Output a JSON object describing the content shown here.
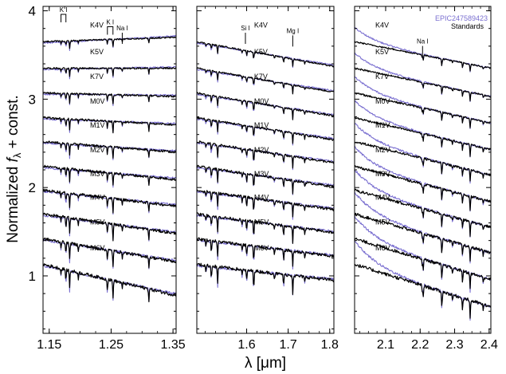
{
  "chart_data": {
    "type": "line",
    "ylabel_prefix": "Normalized ",
    "ylabel_var": "f",
    "ylabel_sub": "λ",
    "ylabel_suffix": " + const.",
    "xlabel": "λ [μm]",
    "ylim": [
      0.35,
      4.05
    ],
    "yticks": [
      1,
      2,
      3,
      4
    ],
    "legend": {
      "position": "top-right",
      "entries": [
        {
          "label": "EPIC247589423",
          "color": "#7a6fd0"
        },
        {
          "label": "Standards",
          "color": "#000000"
        }
      ]
    },
    "colors": {
      "target": "#7a6fd0",
      "standard": "#000000"
    },
    "spectral_types": [
      "K4V",
      "K5V",
      "K7V",
      "M0V",
      "M1V",
      "M2V",
      "M3V",
      "M4V",
      "M5V",
      "M6V"
    ],
    "offsets": [
      3.55,
      3.25,
      2.97,
      2.69,
      2.42,
      2.14,
      1.87,
      1.6,
      1.32,
      1.03
    ],
    "panels": [
      {
        "name": "J",
        "xlim": [
          1.14,
          1.355
        ],
        "xticks": [
          1.15,
          1.25,
          1.35
        ],
        "xticklabels": [
          "1.15",
          "1.25",
          "1.35"
        ],
        "slopes": [
          0.05,
          0.0,
          -0.04,
          -0.08,
          -0.12,
          -0.15,
          -0.18,
          -0.22,
          -0.26,
          -0.35
        ],
        "absorption_lines": [
          1.169,
          1.177,
          1.183,
          1.197,
          1.244,
          1.253,
          1.268,
          1.311
        ],
        "line_labels": [
          {
            "text": "K I",
            "x1": 1.169,
            "x2": 1.177,
            "bracket": true,
            "y": 3.96
          },
          {
            "text": "K I",
            "x1": 1.244,
            "x2": 1.253,
            "bracket": true,
            "y": 3.82
          },
          {
            "text": "Na I",
            "x1": 1.268,
            "bracket": false,
            "y": 3.77
          }
        ],
        "type_label_x": 1.216
      },
      {
        "name": "H",
        "xlim": [
          1.48,
          1.81
        ],
        "xticks": [
          1.6,
          1.7,
          1.8
        ],
        "xticklabels": [
          "1.6",
          "1.7",
          "1.8"
        ],
        "slopes": [
          -0.28,
          -0.27,
          -0.26,
          -0.25,
          -0.24,
          -0.23,
          -0.22,
          -0.21,
          -0.2,
          -0.18
        ],
        "absorption_lines": [
          1.502,
          1.515,
          1.53,
          1.589,
          1.6,
          1.617,
          1.667,
          1.689,
          1.711,
          1.74
        ],
        "line_labels": [
          {
            "text": "Si I",
            "x1": 1.597,
            "bracket": false,
            "y": 3.77
          },
          {
            "text": "Mg I",
            "x1": 1.711,
            "bracket": false,
            "y": 3.74
          }
        ],
        "type_label_x": 1.618
      },
      {
        "name": "K",
        "xlim": [
          2.01,
          2.405
        ],
        "xticks": [
          2.1,
          2.2,
          2.3,
          2.4
        ],
        "xticklabels": [
          "2.1",
          "2.2",
          "2.3",
          "2.4"
        ],
        "slopes": [
          -0.3,
          -0.32,
          -0.34,
          -0.36,
          -0.38,
          -0.4,
          -0.42,
          -0.44,
          -0.46,
          -0.48
        ],
        "absorption_lines": [
          2.206,
          2.209,
          2.263,
          2.294,
          2.323,
          2.345,
          2.383
        ],
        "line_labels": [
          {
            "text": "Na I",
            "x1": 2.207,
            "bracket": false,
            "y": 3.62
          }
        ],
        "type_label_x": 2.07
      }
    ]
  }
}
